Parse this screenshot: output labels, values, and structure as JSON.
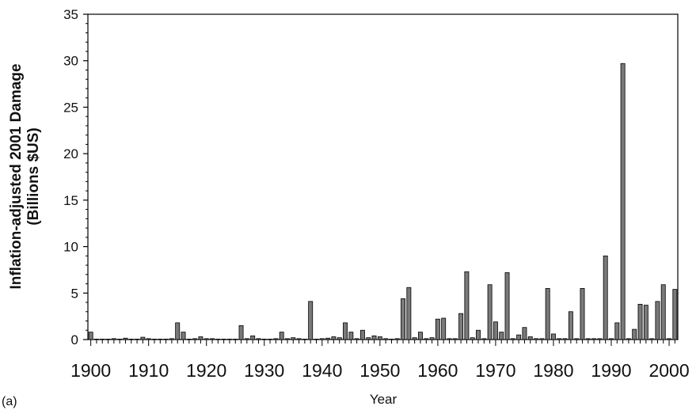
{
  "chart_data": {
    "type": "bar",
    "panel_label": "(a)",
    "xlabel": "Year",
    "ylabel_lines": [
      "Inflation-adjusted 2001 Damage",
      "(Billions $US)"
    ],
    "ylim": [
      0,
      35
    ],
    "yticks": [
      0,
      5,
      10,
      15,
      20,
      25,
      30,
      35
    ],
    "xlim": [
      1900,
      2001
    ],
    "xticks": [
      1900,
      1910,
      1920,
      1930,
      1940,
      1950,
      1960,
      1970,
      1980,
      1990,
      2000
    ],
    "grid": false,
    "bar_color": "#7a7a7a",
    "bar_edge_color": "#000000",
    "x": [
      1900,
      1901,
      1902,
      1903,
      1904,
      1905,
      1906,
      1907,
      1908,
      1909,
      1910,
      1911,
      1912,
      1913,
      1914,
      1915,
      1916,
      1917,
      1918,
      1919,
      1920,
      1921,
      1922,
      1923,
      1924,
      1925,
      1926,
      1927,
      1928,
      1929,
      1930,
      1931,
      1932,
      1933,
      1934,
      1935,
      1936,
      1937,
      1938,
      1939,
      1940,
      1941,
      1942,
      1943,
      1944,
      1945,
      1946,
      1947,
      1948,
      1949,
      1950,
      1951,
      1952,
      1953,
      1954,
      1955,
      1956,
      1957,
      1958,
      1959,
      1960,
      1961,
      1962,
      1963,
      1964,
      1965,
      1966,
      1967,
      1968,
      1969,
      1970,
      1971,
      1972,
      1973,
      1974,
      1975,
      1976,
      1977,
      1978,
      1979,
      1980,
      1981,
      1982,
      1983,
      1984,
      1985,
      1986,
      1987,
      1988,
      1989,
      1990,
      1991,
      1992,
      1993,
      1994,
      1995,
      1996,
      1997,
      1998,
      1999,
      2000,
      2001
    ],
    "values": [
      0.8,
      0.05,
      0.05,
      0.05,
      0.1,
      0.05,
      0.15,
      0.05,
      0.05,
      0.25,
      0.1,
      0.05,
      0.05,
      0.05,
      0.1,
      1.8,
      0.8,
      0.05,
      0.1,
      0.3,
      0.1,
      0.1,
      0.05,
      0.05,
      0.05,
      0.05,
      1.5,
      0.1,
      0.4,
      0.1,
      0.05,
      0.05,
      0.1,
      0.8,
      0.1,
      0.2,
      0.1,
      0.05,
      4.1,
      0.05,
      0.1,
      0.15,
      0.3,
      0.2,
      1.8,
      0.8,
      0.1,
      1.0,
      0.2,
      0.4,
      0.3,
      0.1,
      0.05,
      0.1,
      4.4,
      5.6,
      0.2,
      0.8,
      0.1,
      0.2,
      2.2,
      2.3,
      0.1,
      0.1,
      2.8,
      7.3,
      0.2,
      1.0,
      0.1,
      5.9,
      1.9,
      0.8,
      7.2,
      0.1,
      0.5,
      1.3,
      0.3,
      0.1,
      0.1,
      5.5,
      0.6,
      0.1,
      0.1,
      3.0,
      0.1,
      5.5,
      0.1,
      0.1,
      0.1,
      9.0,
      0.1,
      1.8,
      29.7,
      0.1,
      1.1,
      3.8,
      3.7,
      0.1,
      4.1,
      5.9,
      0.1,
      5.4
    ]
  }
}
